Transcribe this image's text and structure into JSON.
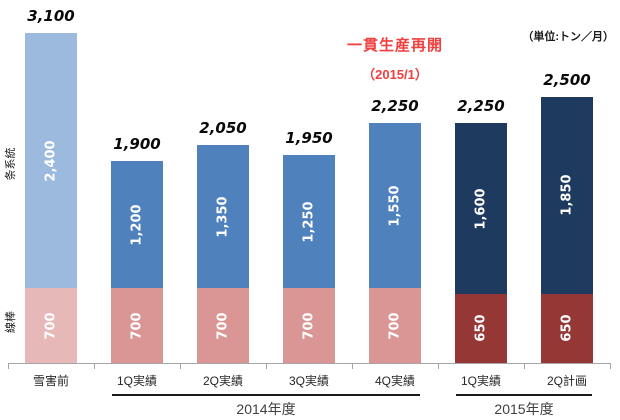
{
  "unit_label": "（単位:トン／月）",
  "annotation": {
    "line1": "一貫生産再開",
    "line2": "（2015/1）",
    "color": "#ef3f3f"
  },
  "chart_data": {
    "type": "bar",
    "stacked": true,
    "title": "",
    "unit": "トン／月",
    "categories": [
      "雪害前",
      "1Q実績",
      "2Q実績",
      "3Q実績",
      "4Q実績",
      "1Q実績",
      "2Q計画"
    ],
    "series": [
      {
        "name": "線棒",
        "values": [
          700,
          700,
          700,
          700,
          700,
          650,
          650
        ]
      },
      {
        "name": "条系統",
        "values": [
          2400,
          1200,
          1350,
          1250,
          1550,
          1600,
          1850
        ]
      }
    ],
    "totals": [
      3100,
      1900,
      2050,
      1950,
      2250,
      2250,
      2500
    ],
    "variants": [
      "light",
      "mid",
      "mid",
      "mid",
      "mid",
      "dark",
      "dark"
    ],
    "palette": {
      "light": {
        "top": "#9cbade",
        "bottom": "#e6b9b8"
      },
      "mid": {
        "top": "#4f81bd",
        "bottom": "#d99694"
      },
      "dark": {
        "top": "#1e3a5f",
        "bottom": "#953735"
      }
    },
    "groups": [
      {
        "label": "2014年度",
        "from": 1,
        "to": 4
      },
      {
        "label": "2015年度",
        "from": 5,
        "to": 6
      }
    ],
    "ylim": [
      0,
      3100
    ],
    "grid": false,
    "legend": "none"
  }
}
